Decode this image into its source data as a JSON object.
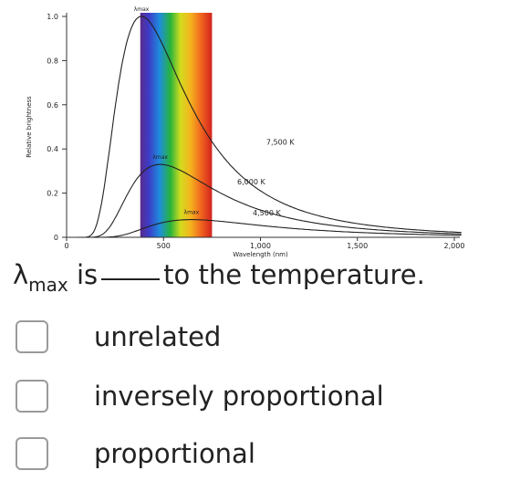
{
  "chart_data": {
    "type": "line",
    "ylabel": "Relative brightness",
    "xlabel": "Wavelength (nm)",
    "xlim": [
      0,
      2000
    ],
    "ylim": [
      0,
      1.0
    ],
    "x_ticks": [
      0,
      500,
      1000,
      1500,
      2000
    ],
    "x_tick_labels": [
      "0",
      "500",
      "1,000",
      "1,500",
      "2,000"
    ],
    "y_ticks": [
      0,
      0.2,
      0.4,
      0.6,
      0.8,
      1.0
    ],
    "y_tick_labels": [
      "0",
      "0.2",
      "0.4",
      "0.6",
      "0.8",
      "1.0"
    ],
    "visible_spectrum_nm": [
      380,
      750
    ],
    "lambda_max_label": "λmax",
    "series": [
      {
        "name": "7,500 K",
        "temperature_k": 7500,
        "peak_nm": 386,
        "peak_value": 1.0
      },
      {
        "name": "6,000 K",
        "temperature_k": 6000,
        "peak_nm": 483,
        "peak_value": 0.33
      },
      {
        "name": "4,500 K",
        "temperature_k": 4500,
        "peak_nm": 644,
        "peak_value": 0.08
      }
    ]
  },
  "question": {
    "lambda": "λ",
    "lambda_sub": "max",
    "pre": " is",
    "post": "to the temperature."
  },
  "options": [
    {
      "label": "unrelated"
    },
    {
      "label": "inversely proportional"
    },
    {
      "label": "proportional"
    }
  ]
}
